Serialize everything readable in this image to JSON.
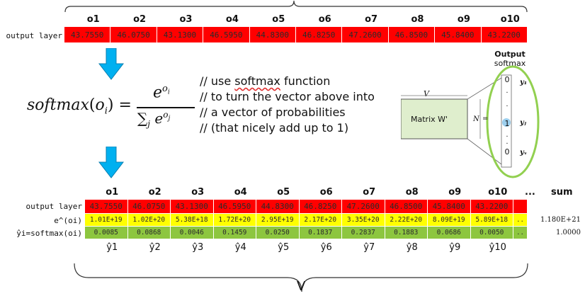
{
  "top": {
    "headers": [
      "o1",
      "o2",
      "o3",
      "o4",
      "o5",
      "o6",
      "o7",
      "o8",
      "o9",
      "o10"
    ],
    "row_label": "output layer",
    "values": [
      "43.7550",
      "46.0750",
      "43.1300",
      "46.5950",
      "44.8300",
      "46.8250",
      "47.2600",
      "46.8500",
      "45.8400",
      "43.2200"
    ]
  },
  "formula": {
    "lhs_func": "softmax",
    "lhs_arg": "o",
    "lhs_sub": "i",
    "num_base": "e",
    "num_exp": "o",
    "num_exp_sub": "i",
    "den_sum": "∑",
    "den_sum_sub": "j",
    "den_base": "e",
    "den_exp": "o",
    "den_exp_sub": "j"
  },
  "comment": {
    "line1_prefix": "// use ",
    "line1_word": "softmax",
    "line1_suffix": " function",
    "line2": "// to turn the vector above into",
    "line3": "// a vector of probabilities",
    "line4": "// (that nicely add up to 1)"
  },
  "network": {
    "matrix_label": "Matrix W'",
    "v_label": "V",
    "n_label": "N",
    "eq_label": "=",
    "output_title": "Output",
    "output_subtitle": "softmax",
    "output_values": [
      "0",
      "·",
      "·",
      "1",
      "·",
      "·",
      "0"
    ],
    "output_ys": [
      "y₁",
      "yⱼ",
      "yᵥ"
    ]
  },
  "bottom": {
    "headers": [
      "o1",
      "o2",
      "o3",
      "o4",
      "o5",
      "o6",
      "o7",
      "o8",
      "o9",
      "o10"
    ],
    "ellipsis": "...",
    "sum_header": "sum",
    "rows": [
      {
        "label": "output layer",
        "color": "#ff0000",
        "values": [
          "43.7550",
          "46.0750",
          "43.1300",
          "46.5950",
          "44.8300",
          "46.8250",
          "47.2600",
          "46.8500",
          "45.8400",
          "43.2200"
        ],
        "tail": "",
        "sum": ""
      },
      {
        "label": "e^(oi)",
        "color": "#ffff00",
        "values": [
          "1.01E+19",
          "1.02E+20",
          "5.38E+18",
          "1.72E+20",
          "2.95E+19",
          "2.17E+20",
          "3.35E+20",
          "2.22E+20",
          "8.09E+19",
          "5.89E+18"
        ],
        "tail": "..",
        "sum": "1.180E+21"
      },
      {
        "label": "ŷi=softmax(oi)",
        "color": "#8dc63f",
        "values": [
          "0.0085",
          "0.0868",
          "0.0046",
          "0.1459",
          "0.0250",
          "0.1837",
          "0.2837",
          "0.1883",
          "0.0686",
          "0.0050"
        ],
        "tail": "..",
        "sum": "1.0000"
      }
    ],
    "y_labels": [
      "ŷ1",
      "ŷ2",
      "ŷ3",
      "ŷ4",
      "ŷ5",
      "ŷ6",
      "ŷ7",
      "ŷ8",
      "ŷ9",
      "ŷ10"
    ],
    "brace_label": "V"
  },
  "colors": {
    "red": "#ff0000",
    "yellow": "#ffff00",
    "green": "#8dc63f",
    "arrow": "#00b0f0",
    "ellipse": "#92d050"
  }
}
